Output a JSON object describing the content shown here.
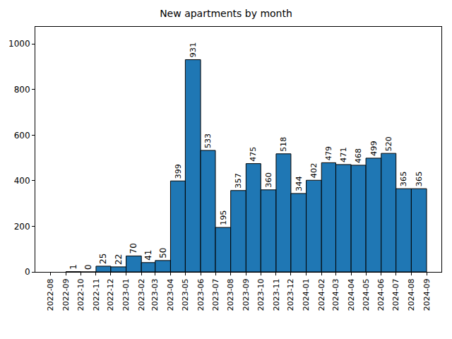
{
  "chart_data": {
    "type": "histogram",
    "title": "New apartments by month",
    "bins": [
      "2022-09",
      "2022-10",
      "2022-11",
      "2022-12",
      "2023-01",
      "2023-02",
      "2023-03",
      "2023-04",
      "2023-05",
      "2023-06",
      "2023-07",
      "2023-08",
      "2023-09",
      "2023-10",
      "2023-11",
      "2023-12",
      "2024-01",
      "2024-02",
      "2024-03",
      "2024-04",
      "2024-05",
      "2024-06",
      "2024-07",
      "2024-08",
      "2024-09"
    ],
    "values": [
      1,
      0,
      25,
      22,
      70,
      41,
      50,
      399,
      931,
      533,
      195,
      357,
      475,
      360,
      518,
      344,
      402,
      479,
      471,
      468,
      499,
      520,
      365,
      365
    ],
    "color": "#1f77b4",
    "xlim": [
      "2022-07",
      "2024-10"
    ],
    "xticks": [
      "2022-08",
      "2022-09",
      "2022-10",
      "2022-11",
      "2022-12",
      "2023-01",
      "2023-02",
      "2023-03",
      "2023-04",
      "2023-05",
      "2023-06",
      "2023-07",
      "2023-08",
      "2023-09",
      "2023-10",
      "2023-11",
      "2023-12",
      "2024-01",
      "2024-02",
      "2024-03",
      "2024-04",
      "2024-05",
      "2024-06",
      "2024-07",
      "2024-08",
      "2024-09"
    ],
    "ylim": [
      0,
      1075
    ],
    "yticks": [
      0,
      200,
      400,
      600,
      800,
      1000
    ],
    "grid": false,
    "data_labels": true
  }
}
